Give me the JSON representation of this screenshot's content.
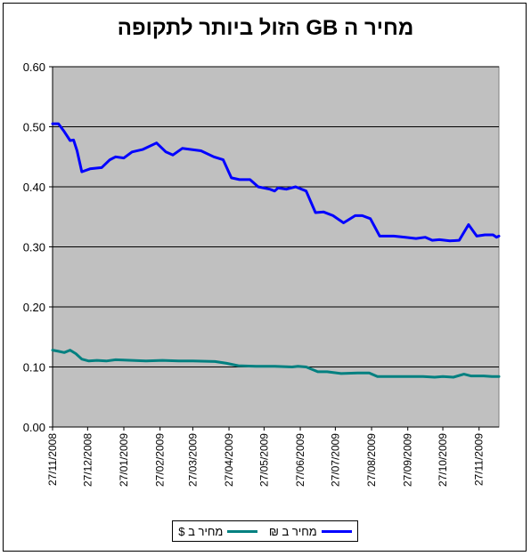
{
  "chart_data": {
    "type": "line",
    "title": "מחיר ה GB הזול ביותר לתקופה",
    "xlabel": "",
    "ylabel": "",
    "ylim": [
      0,
      0.6
    ],
    "y_ticks": [
      "0.00",
      "0.10",
      "0.20",
      "0.30",
      "0.40",
      "0.50",
      "0.60"
    ],
    "x_ticks": [
      "27/11/2008",
      "27/12/2008",
      "27/01/2009",
      "27/02/2009",
      "27/03/2009",
      "27/04/2009",
      "27/05/2009",
      "27/06/2009",
      "27/07/2009",
      "27/08/2009",
      "27/09/2009",
      "27/10/2009",
      "27/11/2009"
    ],
    "x_range": [
      "2008-11-27",
      "2009-12-14"
    ],
    "grid": "horizontal",
    "plot_background": "#c0c0c0",
    "legend_position": "bottom",
    "series": [
      {
        "name": "מחיר ב $",
        "color": "#008080",
        "points": [
          [
            "2008-11-27",
            0.128
          ],
          [
            "2008-12-02",
            0.126
          ],
          [
            "2008-12-07",
            0.124
          ],
          [
            "2008-12-12",
            0.128
          ],
          [
            "2008-12-17",
            0.122
          ],
          [
            "2008-12-22",
            0.113
          ],
          [
            "2008-12-28",
            0.11
          ],
          [
            "2009-01-04",
            0.111
          ],
          [
            "2009-01-12",
            0.11
          ],
          [
            "2009-01-20",
            0.112
          ],
          [
            "2009-02-03",
            0.111
          ],
          [
            "2009-02-15",
            0.11
          ],
          [
            "2009-03-01",
            0.111
          ],
          [
            "2009-03-15",
            0.11
          ],
          [
            "2009-03-27",
            0.11
          ],
          [
            "2009-04-15",
            0.109
          ],
          [
            "2009-04-25",
            0.106
          ],
          [
            "2009-05-05",
            0.102
          ],
          [
            "2009-05-20",
            0.101
          ],
          [
            "2009-06-05",
            0.101
          ],
          [
            "2009-06-20",
            0.1
          ],
          [
            "2009-06-25",
            0.101
          ],
          [
            "2009-07-02",
            0.1
          ],
          [
            "2009-07-12",
            0.092
          ],
          [
            "2009-07-20",
            0.092
          ],
          [
            "2009-08-01",
            0.089
          ],
          [
            "2009-08-15",
            0.09
          ],
          [
            "2009-08-25",
            0.09
          ],
          [
            "2009-09-01",
            0.084
          ],
          [
            "2009-09-15",
            0.084
          ],
          [
            "2009-10-03",
            0.084
          ],
          [
            "2009-10-10",
            0.084
          ],
          [
            "2009-10-20",
            0.083
          ],
          [
            "2009-10-27",
            0.084
          ],
          [
            "2009-11-05",
            0.083
          ],
          [
            "2009-11-14",
            0.088
          ],
          [
            "2009-11-20",
            0.085
          ],
          [
            "2009-12-01",
            0.085
          ],
          [
            "2009-12-08",
            0.084
          ],
          [
            "2009-12-14",
            0.084
          ]
        ]
      },
      {
        "name": "מחיר ב ₪",
        "color": "#0000ff",
        "points": [
          [
            "2008-11-27",
            0.505
          ],
          [
            "2008-12-02",
            0.505
          ],
          [
            "2008-12-07",
            0.492
          ],
          [
            "2008-12-12",
            0.477
          ],
          [
            "2008-12-15",
            0.478
          ],
          [
            "2008-12-18",
            0.46
          ],
          [
            "2008-12-22",
            0.425
          ],
          [
            "2008-12-29",
            0.43
          ],
          [
            "2009-01-08",
            0.432
          ],
          [
            "2009-01-15",
            0.445
          ],
          [
            "2009-01-20",
            0.45
          ],
          [
            "2009-01-27",
            0.448
          ],
          [
            "2009-02-03",
            0.458
          ],
          [
            "2009-02-12",
            0.462
          ],
          [
            "2009-02-24",
            0.473
          ],
          [
            "2009-03-04",
            0.458
          ],
          [
            "2009-03-10",
            0.453
          ],
          [
            "2009-03-18",
            0.464
          ],
          [
            "2009-03-26",
            0.462
          ],
          [
            "2009-04-03",
            0.46
          ],
          [
            "2009-04-14",
            0.45
          ],
          [
            "2009-04-22",
            0.445
          ],
          [
            "2009-04-29",
            0.415
          ],
          [
            "2009-05-06",
            0.412
          ],
          [
            "2009-05-15",
            0.412
          ],
          [
            "2009-05-22",
            0.4
          ],
          [
            "2009-06-01",
            0.396
          ],
          [
            "2009-06-05",
            0.393
          ],
          [
            "2009-06-08",
            0.398
          ],
          [
            "2009-06-15",
            0.396
          ],
          [
            "2009-06-23",
            0.4
          ],
          [
            "2009-07-02",
            0.393
          ],
          [
            "2009-07-10",
            0.357
          ],
          [
            "2009-07-17",
            0.358
          ],
          [
            "2009-07-25",
            0.352
          ],
          [
            "2009-08-03",
            0.34
          ],
          [
            "2009-08-13",
            0.352
          ],
          [
            "2009-08-19",
            0.352
          ],
          [
            "2009-08-26",
            0.347
          ],
          [
            "2009-09-03",
            0.318
          ],
          [
            "2009-09-15",
            0.318
          ],
          [
            "2009-09-25",
            0.316
          ],
          [
            "2009-10-04",
            0.314
          ],
          [
            "2009-10-12",
            0.316
          ],
          [
            "2009-10-18",
            0.311
          ],
          [
            "2009-10-24",
            0.312
          ],
          [
            "2009-11-02",
            0.31
          ],
          [
            "2009-11-10",
            0.311
          ],
          [
            "2009-11-18",
            0.337
          ],
          [
            "2009-11-25",
            0.318
          ],
          [
            "2009-12-02",
            0.32
          ],
          [
            "2009-12-09",
            0.32
          ],
          [
            "2009-12-12",
            0.316
          ],
          [
            "2009-12-14",
            0.318
          ]
        ]
      }
    ]
  }
}
